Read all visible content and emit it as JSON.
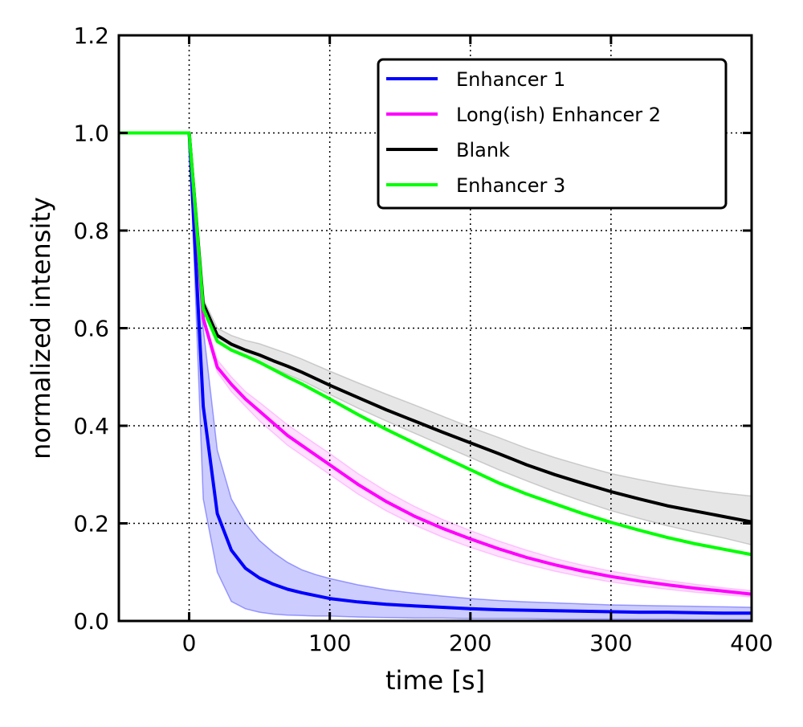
{
  "chart_data": {
    "type": "line",
    "title": "",
    "xlabel": "time [s]",
    "ylabel": "normalized intensity",
    "xlim": [
      -50,
      400
    ],
    "ylim": [
      0.0,
      1.2
    ],
    "x_ticks": [
      0,
      100,
      200,
      300,
      400
    ],
    "x_tick_labels": [
      "0",
      "100",
      "200",
      "300",
      "400"
    ],
    "y_ticks": [
      0.0,
      0.2,
      0.4,
      0.6,
      0.8,
      1.0,
      1.2
    ],
    "y_tick_labels": [
      "0.0",
      "0.2",
      "0.4",
      "0.6",
      "0.8",
      "1.0",
      "1.2"
    ],
    "grid": true,
    "legend_position": "top-right",
    "series": [
      {
        "name": "Enhancer 1",
        "color": "#0000ff",
        "band_color": "#0000ff",
        "x": [
          -50,
          -40,
          -30,
          -20,
          -10,
          0,
          10,
          20,
          30,
          40,
          50,
          60,
          70,
          80,
          90,
          100,
          120,
          140,
          160,
          180,
          200,
          220,
          240,
          260,
          280,
          300,
          320,
          340,
          360,
          380,
          400
        ],
        "y": [
          1.0,
          1.0,
          1.0,
          1.0,
          1.0,
          1.0,
          0.44,
          0.22,
          0.145,
          0.108,
          0.088,
          0.075,
          0.065,
          0.058,
          0.052,
          0.046,
          0.039,
          0.034,
          0.031,
          0.028,
          0.025,
          0.023,
          0.022,
          0.021,
          0.02,
          0.019,
          0.018,
          0.018,
          0.017,
          0.016,
          0.016
        ],
        "lower": [
          1.0,
          1.0,
          1.0,
          1.0,
          1.0,
          1.0,
          0.25,
          0.1,
          0.04,
          0.025,
          0.018,
          0.014,
          0.012,
          0.011,
          0.01,
          0.01,
          0.008,
          0.007,
          0.006,
          0.006,
          0.005,
          0.005,
          0.005,
          0.004,
          0.004,
          0.004,
          0.004,
          0.004,
          0.003,
          0.003,
          0.003
        ],
        "upper": [
          1.0,
          1.0,
          1.0,
          1.0,
          1.0,
          1.0,
          0.6,
          0.35,
          0.25,
          0.2,
          0.165,
          0.14,
          0.12,
          0.105,
          0.095,
          0.087,
          0.074,
          0.064,
          0.057,
          0.051,
          0.046,
          0.042,
          0.039,
          0.037,
          0.035,
          0.033,
          0.032,
          0.031,
          0.03,
          0.029,
          0.028
        ]
      },
      {
        "name": "Long(ish) Enhancer 2",
        "color": "#ff00ff",
        "band_color": "#ff66ff",
        "x": [
          -50,
          -40,
          -30,
          -20,
          -10,
          0,
          10,
          20,
          30,
          40,
          50,
          60,
          70,
          80,
          100,
          120,
          140,
          160,
          180,
          200,
          220,
          240,
          260,
          280,
          300,
          320,
          340,
          360,
          380,
          400
        ],
        "y": [
          1.0,
          1.0,
          1.0,
          1.0,
          1.0,
          1.0,
          0.62,
          0.52,
          0.485,
          0.455,
          0.43,
          0.405,
          0.38,
          0.36,
          0.32,
          0.28,
          0.245,
          0.215,
          0.19,
          0.168,
          0.148,
          0.13,
          0.115,
          0.102,
          0.091,
          0.082,
          0.074,
          0.067,
          0.061,
          0.055
        ],
        "lower": [
          1.0,
          1.0,
          1.0,
          1.0,
          1.0,
          1.0,
          0.615,
          0.51,
          0.47,
          0.44,
          0.41,
          0.385,
          0.36,
          0.34,
          0.3,
          0.26,
          0.226,
          0.197,
          0.172,
          0.151,
          0.132,
          0.116,
          0.102,
          0.09,
          0.08,
          0.072,
          0.065,
          0.059,
          0.054,
          0.049
        ],
        "upper": [
          1.0,
          1.0,
          1.0,
          1.0,
          1.0,
          1.0,
          0.625,
          0.535,
          0.5,
          0.47,
          0.448,
          0.425,
          0.402,
          0.382,
          0.343,
          0.302,
          0.266,
          0.235,
          0.208,
          0.185,
          0.164,
          0.145,
          0.128,
          0.114,
          0.102,
          0.092,
          0.083,
          0.075,
          0.068,
          0.062
        ]
      },
      {
        "name": "Blank",
        "color": "#000000",
        "band_color": "#808080",
        "x": [
          -50,
          -40,
          -30,
          -20,
          -10,
          0,
          10,
          20,
          30,
          40,
          50,
          60,
          70,
          80,
          100,
          120,
          140,
          160,
          180,
          200,
          220,
          240,
          260,
          280,
          300,
          320,
          340,
          360,
          380,
          400
        ],
        "y": [
          1.0,
          1.0,
          1.0,
          1.0,
          1.0,
          1.0,
          0.65,
          0.585,
          0.567,
          0.555,
          0.545,
          0.533,
          0.522,
          0.51,
          0.483,
          0.458,
          0.433,
          0.41,
          0.387,
          0.365,
          0.343,
          0.32,
          0.3,
          0.282,
          0.265,
          0.25,
          0.236,
          0.225,
          0.214,
          0.203
        ],
        "lower": [
          1.0,
          1.0,
          1.0,
          1.0,
          1.0,
          1.0,
          0.645,
          0.575,
          0.555,
          0.542,
          0.53,
          0.518,
          0.505,
          0.493,
          0.464,
          0.436,
          0.41,
          0.385,
          0.36,
          0.335,
          0.31,
          0.287,
          0.265,
          0.245,
          0.226,
          0.21,
          0.195,
          0.182,
          0.17,
          0.156
        ],
        "upper": [
          1.0,
          1.0,
          1.0,
          1.0,
          1.0,
          1.0,
          0.66,
          0.6,
          0.585,
          0.575,
          0.568,
          0.558,
          0.548,
          0.537,
          0.512,
          0.488,
          0.465,
          0.443,
          0.42,
          0.397,
          0.376,
          0.354,
          0.335,
          0.318,
          0.302,
          0.29,
          0.279,
          0.27,
          0.262,
          0.256
        ]
      },
      {
        "name": "Enhancer 3",
        "color": "#00ff00",
        "x": [
          -50,
          -40,
          -30,
          -20,
          -10,
          0,
          10,
          20,
          30,
          40,
          50,
          60,
          70,
          80,
          100,
          120,
          140,
          160,
          180,
          200,
          220,
          240,
          260,
          280,
          300,
          320,
          340,
          360,
          380,
          400
        ],
        "y": [
          1.0,
          1.0,
          1.0,
          1.0,
          1.0,
          1.0,
          0.64,
          0.573,
          0.555,
          0.543,
          0.53,
          0.515,
          0.5,
          0.486,
          0.455,
          0.423,
          0.393,
          0.365,
          0.337,
          0.31,
          0.283,
          0.26,
          0.24,
          0.22,
          0.202,
          0.186,
          0.171,
          0.158,
          0.147,
          0.136
        ]
      }
    ]
  }
}
